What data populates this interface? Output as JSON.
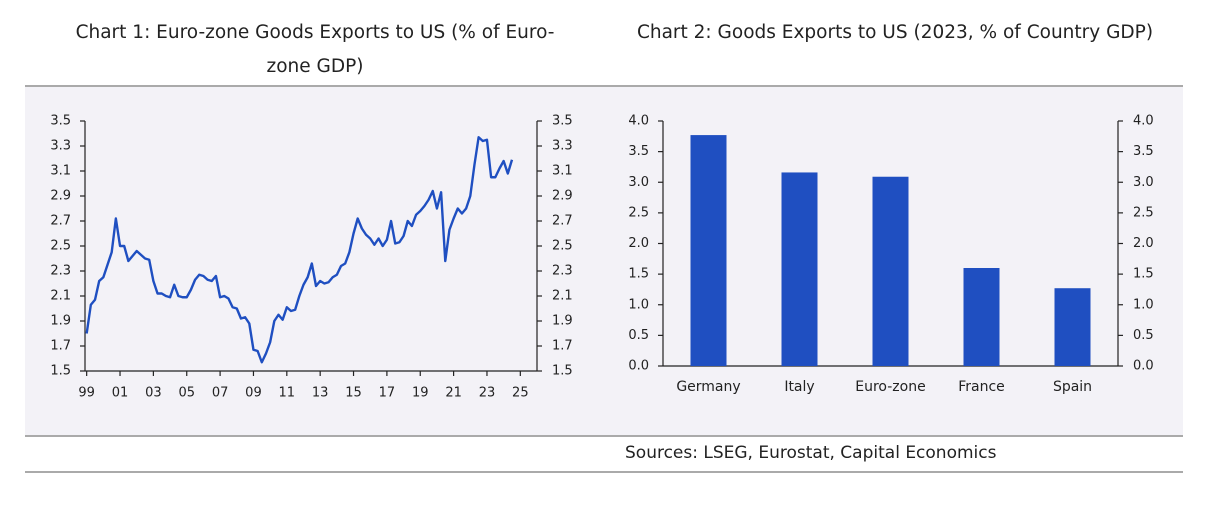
{
  "chart_data": [
    {
      "type": "line",
      "title": "Chart 1: Euro-zone Goods Exports to US (% of Euro-zone GDP)",
      "color": "#1f4fc1",
      "x": [
        1999,
        1999.25,
        1999.5,
        1999.75,
        2000,
        2000.25,
        2000.5,
        2000.75,
        2001,
        2001.25,
        2001.5,
        2001.75,
        2002,
        2002.25,
        2002.5,
        2002.75,
        2003,
        2003.25,
        2003.5,
        2003.75,
        2004,
        2004.25,
        2004.5,
        2004.75,
        2005,
        2005.25,
        2005.5,
        2005.75,
        2006,
        2006.25,
        2006.5,
        2006.75,
        2007,
        2007.25,
        2007.5,
        2007.75,
        2008,
        2008.25,
        2008.5,
        2008.75,
        2009,
        2009.25,
        2009.5,
        2009.75,
        2010,
        2010.25,
        2010.5,
        2010.75,
        2011,
        2011.25,
        2011.5,
        2011.75,
        2012,
        2012.25,
        2012.5,
        2012.75,
        2013,
        2013.25,
        2013.5,
        2013.75,
        2014,
        2014.25,
        2014.5,
        2014.75,
        2015,
        2015.25,
        2015.5,
        2015.75,
        2016,
        2016.25,
        2016.5,
        2016.75,
        2017,
        2017.25,
        2017.5,
        2017.75,
        2018,
        2018.25,
        2018.5,
        2018.75,
        2019,
        2019.25,
        2019.5,
        2019.75,
        2020,
        2020.25,
        2020.5,
        2020.75,
        2021,
        2021.25,
        2021.5,
        2021.75,
        2022,
        2022.25,
        2022.5,
        2022.75,
        2023,
        2023.25,
        2023.5,
        2023.75,
        2024,
        2024.25,
        2024.5
      ],
      "values": [
        1.8,
        2.03,
        2.07,
        2.22,
        2.25,
        2.35,
        2.45,
        2.72,
        2.5,
        2.5,
        2.38,
        2.42,
        2.46,
        2.43,
        2.4,
        2.39,
        2.22,
        2.12,
        2.12,
        2.1,
        2.09,
        2.19,
        2.1,
        2.09,
        2.09,
        2.15,
        2.23,
        2.27,
        2.26,
        2.23,
        2.22,
        2.26,
        2.09,
        2.1,
        2.08,
        2.01,
        2.0,
        1.92,
        1.93,
        1.88,
        1.67,
        1.66,
        1.57,
        1.64,
        1.73,
        1.9,
        1.95,
        1.91,
        2.01,
        1.98,
        1.99,
        2.1,
        2.19,
        2.25,
        2.36,
        2.18,
        2.22,
        2.2,
        2.21,
        2.25,
        2.27,
        2.34,
        2.36,
        2.45,
        2.6,
        2.72,
        2.64,
        2.59,
        2.56,
        2.51,
        2.56,
        2.5,
        2.55,
        2.7,
        2.52,
        2.53,
        2.58,
        2.7,
        2.66,
        2.75,
        2.78,
        2.82,
        2.87,
        2.94,
        2.8,
        2.93,
        2.38,
        2.63,
        2.72,
        2.8,
        2.76,
        2.8,
        2.9,
        3.15,
        3.37,
        3.34,
        3.35,
        3.05,
        3.05,
        3.12,
        3.18,
        3.08,
        3.19
      ],
      "xlim": [
        1998.9,
        2026.0
      ],
      "xticks": [
        {
          "value": 1999,
          "label": "99"
        },
        {
          "value": 2001,
          "label": "01"
        },
        {
          "value": 2003,
          "label": "03"
        },
        {
          "value": 2005,
          "label": "05"
        },
        {
          "value": 2007,
          "label": "07"
        },
        {
          "value": 2009,
          "label": "09"
        },
        {
          "value": 2011,
          "label": "11"
        },
        {
          "value": 2013,
          "label": "13"
        },
        {
          "value": 2015,
          "label": "15"
        },
        {
          "value": 2017,
          "label": "17"
        },
        {
          "value": 2019,
          "label": "19"
        },
        {
          "value": 2021,
          "label": "21"
        },
        {
          "value": 2023,
          "label": "23"
        },
        {
          "value": 2025,
          "label": "25"
        }
      ],
      "ylim": [
        1.5,
        3.5
      ],
      "yticks": [
        1.5,
        1.7,
        1.9,
        2.1,
        2.3,
        2.5,
        2.7,
        2.9,
        3.1,
        3.3,
        3.5
      ],
      "y2lim": [
        1.5,
        3.5
      ],
      "y2ticks": [
        1.5,
        1.7,
        1.9,
        2.1,
        2.3,
        2.5,
        2.7,
        2.9,
        3.1,
        3.3,
        3.5
      ]
    },
    {
      "type": "bar",
      "title": "Chart 2: Goods Exports to US (2023, % of Country GDP)",
      "color": "#1f4fc1",
      "categories": [
        "Germany",
        "Italy",
        "Euro-zone",
        "France",
        "Spain"
      ],
      "values": [
        3.77,
        3.16,
        3.09,
        1.6,
        1.27
      ],
      "ylim": [
        0,
        4
      ],
      "yticks": [
        {
          "value": 0,
          "label": "0.0"
        },
        0.5,
        {
          "value": 1,
          "label": "1.0"
        },
        1.5,
        {
          "value": 2,
          "label": "2.0"
        },
        2.5,
        {
          "value": 3,
          "label": "3.0"
        },
        3.5,
        {
          "value": 4,
          "label": "4.0"
        }
      ],
      "y2lim": [
        0,
        4
      ],
      "y2ticks": [
        {
          "value": 0,
          "label": "0.0"
        },
        0.5,
        {
          "value": 1,
          "label": "1.0"
        },
        1.5,
        {
          "value": 2,
          "label": "2.0"
        },
        2.5,
        {
          "value": 3,
          "label": "3.0"
        },
        3.5,
        {
          "value": 4,
          "label": "4.0"
        }
      ]
    }
  ],
  "source": "Sources: LSEG, Eurostat, Capital Economics"
}
